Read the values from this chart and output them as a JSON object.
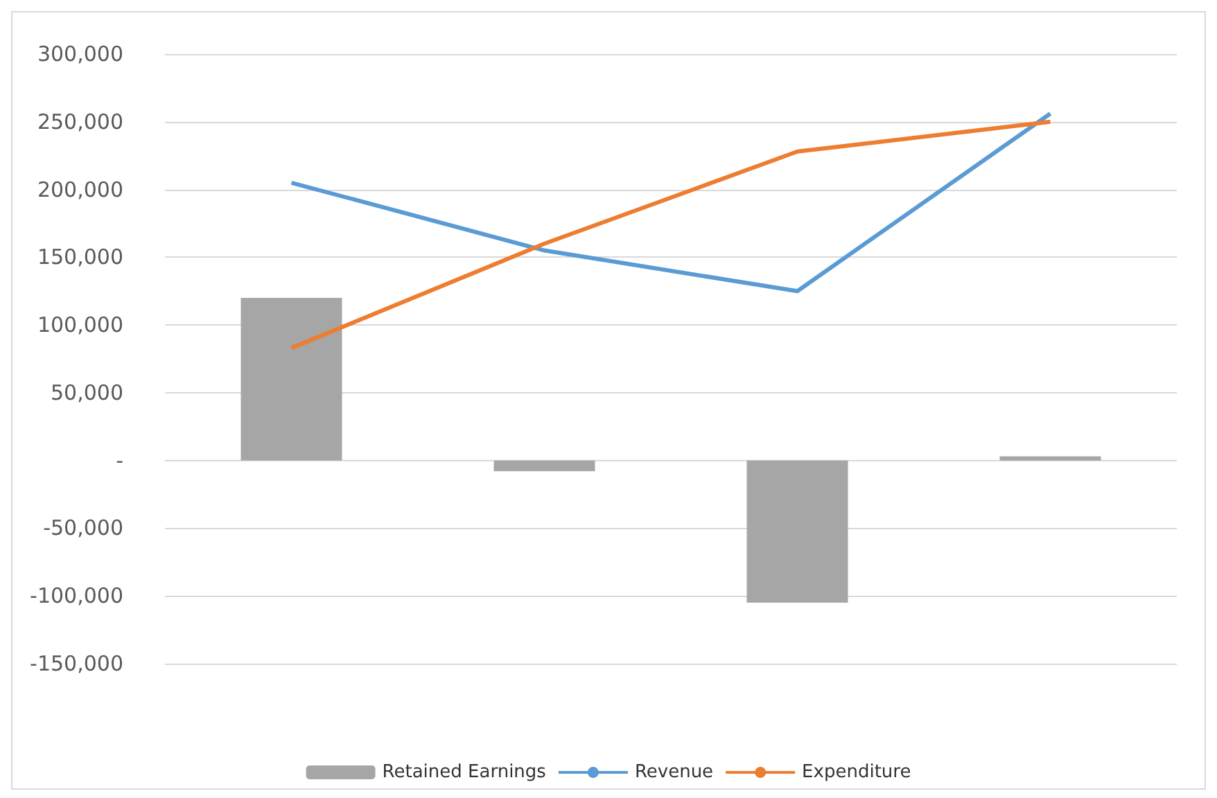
{
  "chart_data": {
    "type": "bar",
    "categories": [
      null,
      null,
      null,
      null
    ],
    "series": [
      {
        "name": "Retained Earnings",
        "color": "#a6a6a6",
        "values": [
          120000,
          -8000,
          -105000,
          3000
        ]
      },
      {
        "name": "Revenue",
        "type": "line",
        "color": "#5b9bd5",
        "values": [
          205000,
          155000,
          125000,
          256000
        ]
      },
      {
        "name": "Expenditure",
        "type": "line",
        "color": "#ed7d31",
        "values": [
          83000,
          160000,
          228000,
          250000
        ]
      }
    ],
    "ylim": [
      -150000,
      300000
    ],
    "yticks": [
      {
        "value": -150000,
        "label": "-150,000"
      },
      {
        "value": -100000,
        "label": "-100,000"
      },
      {
        "value": -50000,
        "label": "-50,000"
      },
      {
        "value": 0,
        "label": "-"
      },
      {
        "value": 50000,
        "label": "50,000"
      },
      {
        "value": 100000,
        "label": "100,000"
      },
      {
        "value": 150000,
        "label": "150,000"
      },
      {
        "value": 200000,
        "label": "200,000"
      },
      {
        "value": 250000,
        "label": "250,000"
      },
      {
        "value": 300000,
        "label": "300,000"
      }
    ],
    "grid": "y",
    "legend": "bottom",
    "marker": "none",
    "line_style": "solid"
  }
}
